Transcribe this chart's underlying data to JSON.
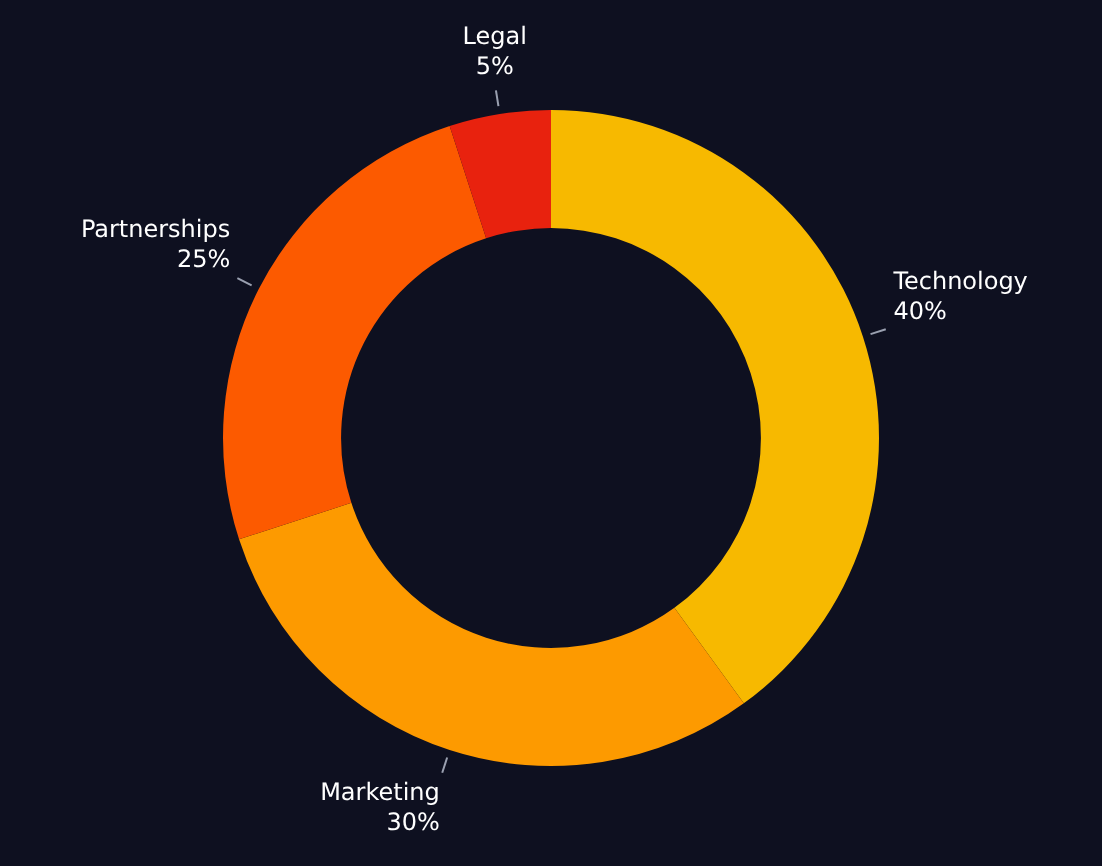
{
  "chart_data": {
    "type": "donut",
    "categories": [
      "Technology",
      "Marketing",
      "Partnerships",
      "Legal"
    ],
    "values": [
      40,
      30,
      25,
      5
    ],
    "value_labels": [
      "40%",
      "30%",
      "25%",
      "5%"
    ],
    "colors": [
      "#f7b900",
      "#fd9a00",
      "#fc5a00",
      "#e8220e"
    ],
    "legend": false
  }
}
